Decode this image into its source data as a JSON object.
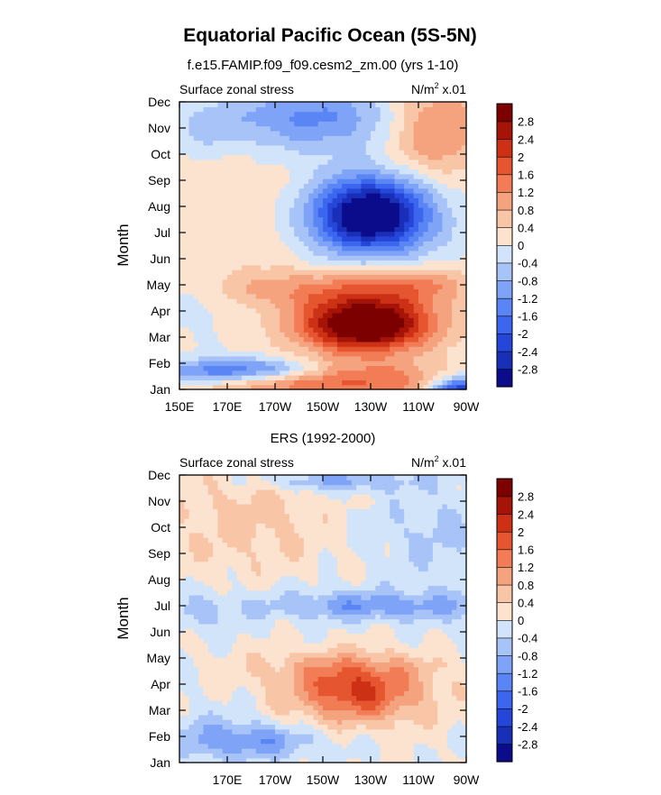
{
  "figure": {
    "title": "Equatorial Pacific Ocean (5S-5N)"
  },
  "palette": {
    "levels": [
      -2.8,
      -2.4,
      -2,
      -1.6,
      -1.2,
      -0.8,
      -0.4,
      0,
      0.4,
      0.8,
      1.2,
      1.6,
      2,
      2.4,
      2.8
    ],
    "colors": [
      "#0b0c8c",
      "#1a2fb8",
      "#2546d9",
      "#3c66ee",
      "#5a86f5",
      "#7ea3f7",
      "#a7c3f7",
      "#d2e4f9",
      "#fbe3d0",
      "#f8c5a7",
      "#f5a27e",
      "#f27c55",
      "#e5552f",
      "#cc3116",
      "#a61408",
      "#7d0000"
    ]
  },
  "chart_data": [
    {
      "type": "heatmap",
      "title": "f.e15.FAMIP.f09_f09.cesm2_zm.00 (yrs 1-10)",
      "left_label": "Surface zonal stress",
      "right_label_base": "N/m",
      "right_label_sup": "2",
      "right_label_tail": " x.01",
      "ylabel": "Month",
      "x_ticks": [
        "150E",
        "170E",
        "170W",
        "150W",
        "130W",
        "110W",
        "90W"
      ],
      "x_tick_values": [
        150,
        170,
        190,
        210,
        230,
        250,
        270
      ],
      "xlim": [
        150,
        270
      ],
      "y_ticks": [
        "Jan",
        "Feb",
        "Mar",
        "Apr",
        "May",
        "Jun",
        "Jul",
        "Aug",
        "Sep",
        "Oct",
        "Nov",
        "Dec"
      ],
      "ylim": [
        1,
        12
      ],
      "colorbar_labels": [
        "-2.8",
        "-2.4",
        "-2",
        "-1.6",
        "-1.2",
        "-0.8",
        "-0.4",
        "0",
        "0.4",
        "0.8",
        "1.2",
        "1.6",
        "2",
        "2.4",
        "2.8"
      ],
      "blobs": [
        {
          "x": 215,
          "y": 1.05,
          "sx": 55,
          "sy": 0.35,
          "a": 0.9
        },
        {
          "x": 220,
          "y": 1.6,
          "sx": 30,
          "sy": 0.45,
          "a": 1.2
        },
        {
          "x": 185,
          "y": 1.8,
          "sx": 20,
          "sy": 0.3,
          "a": -1.5
        },
        {
          "x": 160,
          "y": 1.6,
          "sx": 14,
          "sy": 0.35,
          "a": -0.9
        },
        {
          "x": 268,
          "y": 1.0,
          "sx": 9,
          "sy": 0.35,
          "a": -3.0
        },
        {
          "x": 228,
          "y": 3.5,
          "sx": 20,
          "sy": 0.75,
          "a": 3.8
        },
        {
          "x": 212,
          "y": 4.9,
          "sx": 42,
          "sy": 0.55,
          "a": 1.0
        },
        {
          "x": 250,
          "y": 5.1,
          "sx": 16,
          "sy": 0.45,
          "a": 0.6
        },
        {
          "x": 230,
          "y": 7.7,
          "sx": 17,
          "sy": 1.0,
          "a": -3.8
        },
        {
          "x": 205,
          "y": 11.4,
          "sx": 28,
          "sy": 0.9,
          "a": -1.3
        },
        {
          "x": 257,
          "y": 11.0,
          "sx": 15,
          "sy": 1.3,
          "a": 1.4
        },
        {
          "x": 170,
          "y": 8.3,
          "sx": 25,
          "sy": 2.0,
          "a": 0.35
        },
        {
          "x": 160,
          "y": 10.8,
          "sx": 10,
          "sy": 0.8,
          "a": -0.35
        },
        {
          "x": 158,
          "y": 4.6,
          "sx": 12,
          "sy": 0.7,
          "a": -0.35
        }
      ],
      "wobble": 0.04
    },
    {
      "type": "heatmap",
      "title": "ERS (1992-2000)",
      "left_label": "Surface zonal stress",
      "right_label_base": "N/m",
      "right_label_sup": "2",
      "right_label_tail": " x.01",
      "ylabel": "Month",
      "x_ticks": [
        "170E",
        "170W",
        "150W",
        "130W",
        "110W",
        "90W"
      ],
      "x_tick_values": [
        170,
        190,
        210,
        230,
        250,
        270
      ],
      "xlim": [
        150,
        270
      ],
      "y_ticks": [
        "Jan",
        "Feb",
        "Mar",
        "Apr",
        "May",
        "Jun",
        "Jul",
        "Aug",
        "Sep",
        "Oct",
        "Nov",
        "Dec"
      ],
      "ylim": [
        1,
        12
      ],
      "colorbar_labels": [
        "-2.8",
        "-2.4",
        "-2",
        "-1.6",
        "-1.2",
        "-0.8",
        "-0.4",
        "0",
        "0.4",
        "0.8",
        "1.2",
        "1.6",
        "2",
        "2.4",
        "2.8"
      ],
      "blobs": [
        {
          "x": 225,
          "y": 3.6,
          "sx": 22,
          "sy": 0.85,
          "a": 1.5
        },
        {
          "x": 222,
          "y": 3.9,
          "sx": 13,
          "sy": 0.6,
          "a": 0.55
        },
        {
          "x": 218,
          "y": 4.7,
          "sx": 30,
          "sy": 0.5,
          "a": 0.55
        },
        {
          "x": 230,
          "y": 7.0,
          "sx": 30,
          "sy": 0.35,
          "a": -0.9
        },
        {
          "x": 225,
          "y": 7.2,
          "sx": 40,
          "sy": 0.6,
          "a": -0.25
        },
        {
          "x": 180,
          "y": 1.8,
          "sx": 22,
          "sy": 0.45,
          "a": -0.9
        },
        {
          "x": 168,
          "y": 2.2,
          "sx": 20,
          "sy": 0.7,
          "a": -0.4
        },
        {
          "x": 160,
          "y": 6.7,
          "sx": 11,
          "sy": 0.5,
          "a": -0.5
        },
        {
          "x": 215,
          "y": 11.8,
          "sx": 22,
          "sy": 0.3,
          "a": -1.0
        },
        {
          "x": 240,
          "y": 10.0,
          "sx": 20,
          "sy": 1.0,
          "a": -0.3
        },
        {
          "x": 262,
          "y": 9.4,
          "sx": 12,
          "sy": 2.0,
          "a": -0.3
        },
        {
          "x": 180,
          "y": 10.3,
          "sx": 28,
          "sy": 1.5,
          "a": 0.55
        }
      ],
      "wobble": 0.14
    }
  ]
}
